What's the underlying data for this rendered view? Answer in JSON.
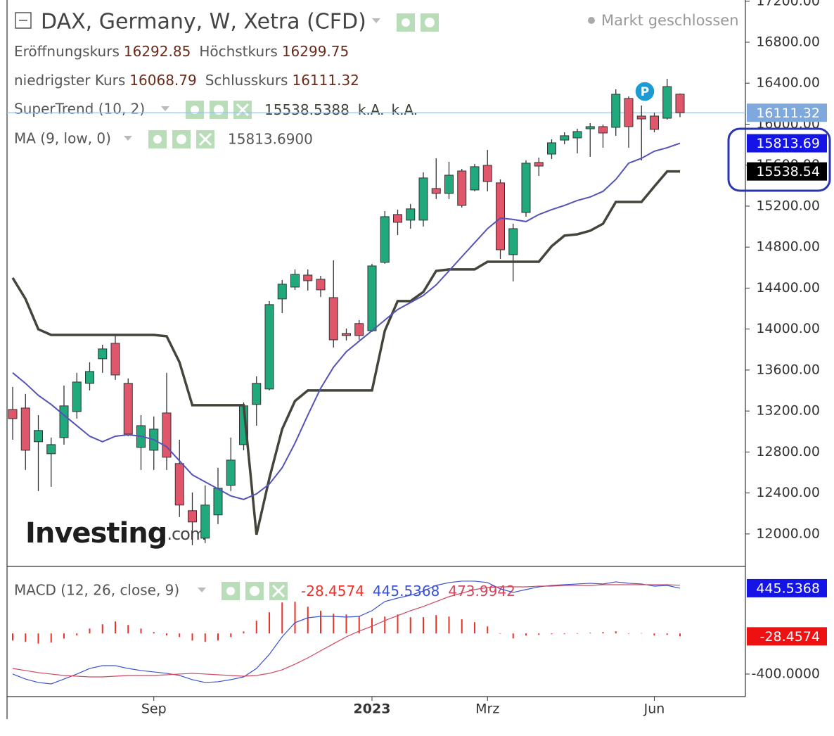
{
  "chart_data": [
    {
      "type": "candlestick",
      "title": "DAX, Germany, W, Xetra (CFD)",
      "status": "Markt geschlossen",
      "ohlc_labels": [
        "Eröffnungskurs",
        "Höchstkurs",
        "niedrigster Kurs",
        "Schlusskurs"
      ],
      "ohlc_values": [
        16292.85,
        16299.75,
        16068.79,
        16111.32
      ],
      "categories": [
        null,
        null,
        null,
        null,
        null,
        null,
        null,
        null,
        null,
        null,
        null,
        "Sep",
        null,
        null,
        null,
        null,
        null,
        null,
        null,
        null,
        null,
        null,
        null,
        null,
        null,
        null,
        null,
        null,
        "2023",
        null,
        null,
        null,
        null,
        null,
        null,
        null,
        null,
        "Mrz",
        null,
        null,
        null,
        null,
        null,
        null,
        null,
        null,
        null,
        null,
        null,
        null,
        "Jun",
        null,
        null
      ],
      "open": [
        13215,
        13229,
        12900,
        12783,
        12941,
        13195,
        13470,
        13710,
        13861,
        13470,
        12845,
        12817,
        13181,
        12687,
        12227,
        11959,
        12186,
        12474,
        12872,
        13264,
        13415,
        14294,
        14410,
        14527,
        14486,
        14307,
        13957,
        14054,
        13984,
        14651,
        15118,
        15063,
        15063,
        15372,
        15324,
        15543,
        15358,
        15598,
        15427,
        14726,
        15138,
        15626,
        15708,
        15845,
        15866,
        15955,
        15976,
        15969,
        16251,
        16079,
        16079,
        16058,
        16292.85
      ],
      "high": [
        13435,
        13367,
        13160,
        12941,
        13449,
        13573,
        13676,
        13847,
        13950,
        13518,
        13160,
        13147,
        13573,
        12920,
        12405,
        12474,
        12646,
        12941,
        13284,
        13538,
        14273,
        14479,
        14582,
        14582,
        14520,
        14671,
        14005,
        14088,
        14637,
        15152,
        15166,
        15221,
        15530,
        15667,
        15633,
        15564,
        15612,
        15749,
        15461,
        15028,
        15647,
        15674,
        15852,
        15921,
        15955,
        16010,
        15997,
        16340,
        16272,
        16182,
        16113,
        16443,
        16299.75
      ],
      "low": [
        12920,
        12625,
        12419,
        12460,
        12872,
        13126,
        13401,
        13573,
        13504,
        12954,
        12625,
        12625,
        12625,
        12165,
        11890,
        11911,
        12096,
        12419,
        12817,
        13057,
        13401,
        14156,
        14383,
        14376,
        14314,
        13820,
        13889,
        13895,
        13971,
        14637,
        14918,
        14980,
        15001,
        15269,
        15269,
        15186,
        15344,
        15344,
        14685,
        14465,
        15097,
        15495,
        15660,
        15804,
        15715,
        15681,
        15770,
        15887,
        15770,
        15646,
        15921,
        16045,
        16068.79
      ],
      "close": [
        13126,
        12817,
        13010,
        12872,
        13250,
        13483,
        13586,
        13806,
        13552,
        12975,
        13057,
        13023,
        12749,
        12282,
        12117,
        12282,
        12446,
        12721,
        13250,
        13470,
        14239,
        14438,
        14534,
        14472,
        14383,
        13895,
        13937,
        13937,
        14616,
        15097,
        15042,
        15173,
        15475,
        15324,
        15502,
        15207,
        15585,
        15440,
        14774,
        14980,
        15619,
        15591,
        15818,
        15887,
        15928,
        15976,
        15914,
        16292,
        15976,
        16051,
        15949,
        16367,
        16111.32
      ],
      "up_color": "#1fa97c",
      "down_color": "#e0566b",
      "series": [
        {
          "name": "SuperTrend (10, 2)",
          "color": "#44443a",
          "legend_values": [
            "15538.5388",
            "k.A.",
            "k.A."
          ],
          "values": [
            14500,
            14294,
            13998,
            13943,
            13943,
            13943,
            13943,
            13943,
            13943,
            13943,
            13943,
            13943,
            13930,
            13676,
            13257,
            13257,
            13257,
            13257,
            13257,
            11993,
            12542,
            13023,
            13298,
            13401,
            13401,
            13401,
            13401,
            13401,
            13401,
            13984,
            14273,
            14273,
            14362,
            14568,
            14582,
            14582,
            14582,
            14657,
            14657,
            14657,
            14657,
            14657,
            14809,
            14912,
            14925,
            14960,
            15028,
            15241,
            15241,
            15241,
            15392,
            15538.54,
            15538.5388
          ]
        },
        {
          "name": "MA (9, low, 0)",
          "color": "#5353b8",
          "legend_values": [
            "15813.6900"
          ],
          "values": [
            13573,
            13470,
            13353,
            13264,
            13160,
            13057,
            12954,
            12900,
            12954,
            12968,
            12954,
            12920,
            12851,
            12714,
            12577,
            12508,
            12440,
            12371,
            12337,
            12391,
            12487,
            12646,
            12886,
            13160,
            13422,
            13628,
            13779,
            13882,
            13984,
            14088,
            14191,
            14259,
            14328,
            14431,
            14568,
            14706,
            14843,
            14980,
            15083,
            15070,
            15049,
            15118,
            15166,
            15207,
            15255,
            15289,
            15344,
            15461,
            15619,
            15667,
            15736,
            15770,
            15813.69
          ]
        }
      ],
      "ylim": [
        11683,
        17212
      ],
      "yticks": [
        {
          "value": 12000,
          "label": "12000.00"
        },
        {
          "value": 12400,
          "label": "12400.00"
        },
        {
          "value": 12800,
          "label": "12800.00"
        },
        {
          "value": 13200,
          "label": "13200.00"
        },
        {
          "value": 13600,
          "label": "13600.00"
        },
        {
          "value": 14000,
          "label": "14000.00"
        },
        {
          "value": 14400,
          "label": "14400.00"
        },
        {
          "value": 14800,
          "label": "14800.00"
        },
        {
          "value": 15200,
          "label": "15200.00"
        },
        {
          "value": 15600,
          "label": "15600.00"
        },
        {
          "value": 16000,
          "label": "16000.00"
        },
        {
          "value": 16400,
          "label": "16400.00"
        },
        {
          "value": 16800,
          "label": "16800.00"
        },
        {
          "value": 17200,
          "label": "17200.00"
        }
      ],
      "price_tags": [
        {
          "value": 16111.32,
          "color": "#7fa9dc"
        },
        {
          "value": 15813.69,
          "color": "#1414e6"
        },
        {
          "value": 15538.54,
          "color": "#000000"
        }
      ],
      "badge": "P"
    },
    {
      "type": "macd",
      "legend": "MACD (12, 26, close, 9)",
      "series": [
        {
          "style": "histogram",
          "color": "#e8322a",
          "legend_value": "-28.4574",
          "values": [
            -70,
            -83,
            -100,
            -90,
            -50,
            -20,
            48,
            90,
            118,
            83,
            48,
            14,
            -20,
            -35,
            -70,
            -83,
            -70,
            -35,
            20,
            125,
            208,
            305,
            312,
            263,
            222,
            194,
            187,
            166,
            152,
            166,
            187,
            160,
            160,
            180,
            166,
            139,
            111,
            69,
            0,
            -49,
            -21,
            -14,
            -7,
            -7,
            -3,
            7,
            14,
            21,
            -2,
            3,
            -21,
            -14,
            -28.4574
          ]
        },
        {
          "style": "line",
          "color": "#3a52d0",
          "legend_value": "445.5368",
          "values": [
            -400,
            -449,
            -483,
            -497,
            -449,
            -400,
            -345,
            -317,
            -317,
            -345,
            -365,
            -379,
            -393,
            -414,
            -455,
            -483,
            -476,
            -455,
            -428,
            -345,
            -206,
            -33,
            106,
            154,
            168,
            168,
            161,
            168,
            224,
            314,
            348,
            376,
            418,
            473,
            501,
            515,
            515,
            501,
            439,
            404,
            432,
            459,
            473,
            480,
            487,
            494,
            487,
            508,
            494,
            487,
            466,
            473,
            445.5368
          ]
        },
        {
          "style": "line",
          "color": "#d0485e",
          "legend_value": "473.9942",
          "values": [
            -345,
            -365,
            -386,
            -400,
            -414,
            -421,
            -428,
            -428,
            -421,
            -414,
            -414,
            -414,
            -407,
            -400,
            -393,
            -400,
            -407,
            -414,
            -421,
            -414,
            -393,
            -358,
            -303,
            -241,
            -171,
            -102,
            -33,
            23,
            71,
            127,
            175,
            224,
            265,
            314,
            362,
            397,
            432,
            452,
            459,
            459,
            459,
            466,
            466,
            473,
            473,
            473,
            480,
            480,
            480,
            480,
            480,
            480,
            473.9942
          ]
        }
      ],
      "ylim": [
        -622,
        653
      ],
      "yticks": [
        {
          "value": -400,
          "label": "-400.0000"
        }
      ],
      "price_tags": [
        {
          "value": 445.5368,
          "color": "#1414e6"
        },
        {
          "value": -28.4574,
          "color": "#ee1111"
        }
      ]
    }
  ],
  "watermark": {
    "brand": "Investing",
    "domain": ".com"
  }
}
